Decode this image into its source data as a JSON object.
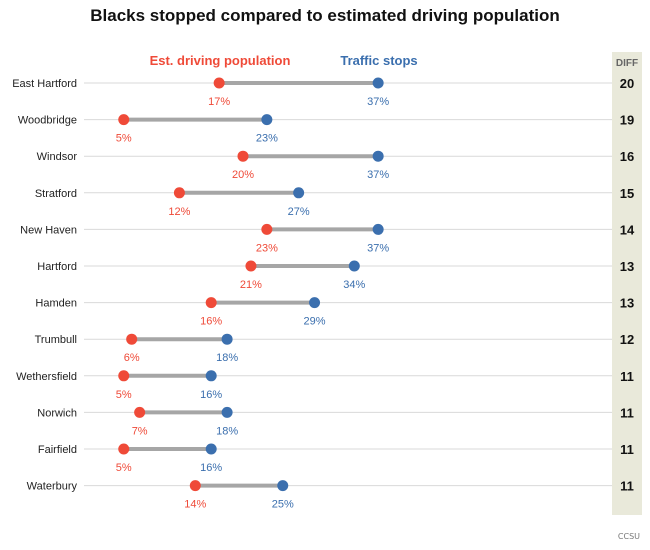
{
  "chart_data": {
    "type": "dumbbell",
    "title": "Blacks stopped compared to estimated driving population",
    "legend": {
      "est_label": "Est. driving population",
      "stops_label": "Traffic stops"
    },
    "diff_header": "DIFF",
    "credit": "CCSU",
    "colors": {
      "est": "#ef4a38",
      "stops": "#3b6fae",
      "connector": "#a6a6a6",
      "diff_bg": "#e9e9da",
      "grid": "#d9d9d9"
    },
    "x_range": [
      0,
      40
    ],
    "rows": [
      {
        "town": "East Hartford",
        "est": 17,
        "est_label": "17%",
        "stops": 37,
        "stops_label": "37%",
        "diff": 20
      },
      {
        "town": "Woodbridge",
        "est": 5,
        "est_label": "5%",
        "stops": 23,
        "stops_label": "23%",
        "diff": 19
      },
      {
        "town": "Windsor",
        "est": 20,
        "est_label": "20%",
        "stops": 37,
        "stops_label": "37%",
        "diff": 16
      },
      {
        "town": "Stratford",
        "est": 12,
        "est_label": "12%",
        "stops": 27,
        "stops_label": "27%",
        "diff": 15
      },
      {
        "town": "New Haven",
        "est": 23,
        "est_label": "23%",
        "stops": 37,
        "stops_label": "37%",
        "diff": 14
      },
      {
        "town": "Hartford",
        "est": 21,
        "est_label": "21%",
        "stops": 34,
        "stops_label": "34%",
        "diff": 13
      },
      {
        "town": "Hamden",
        "est": 16,
        "est_label": "16%",
        "stops": 29,
        "stops_label": "29%",
        "diff": 13
      },
      {
        "town": "Trumbull",
        "est": 6,
        "est_label": "6%",
        "stops": 18,
        "stops_label": "18%",
        "diff": 12
      },
      {
        "town": "Wethersfield",
        "est": 5,
        "est_label": "5%",
        "stops": 16,
        "stops_label": "16%",
        "diff": 11
      },
      {
        "town": "Norwich",
        "est": 7,
        "est_label": "7%",
        "stops": 18,
        "stops_label": "18%",
        "diff": 11
      },
      {
        "town": "Fairfield",
        "est": 5,
        "est_label": "5%",
        "stops": 16,
        "stops_label": "16%",
        "diff": 11
      },
      {
        "town": "Waterbury",
        "est": 14,
        "est_label": "14%",
        "stops": 25,
        "stops_label": "25%",
        "diff": 11
      }
    ]
  }
}
